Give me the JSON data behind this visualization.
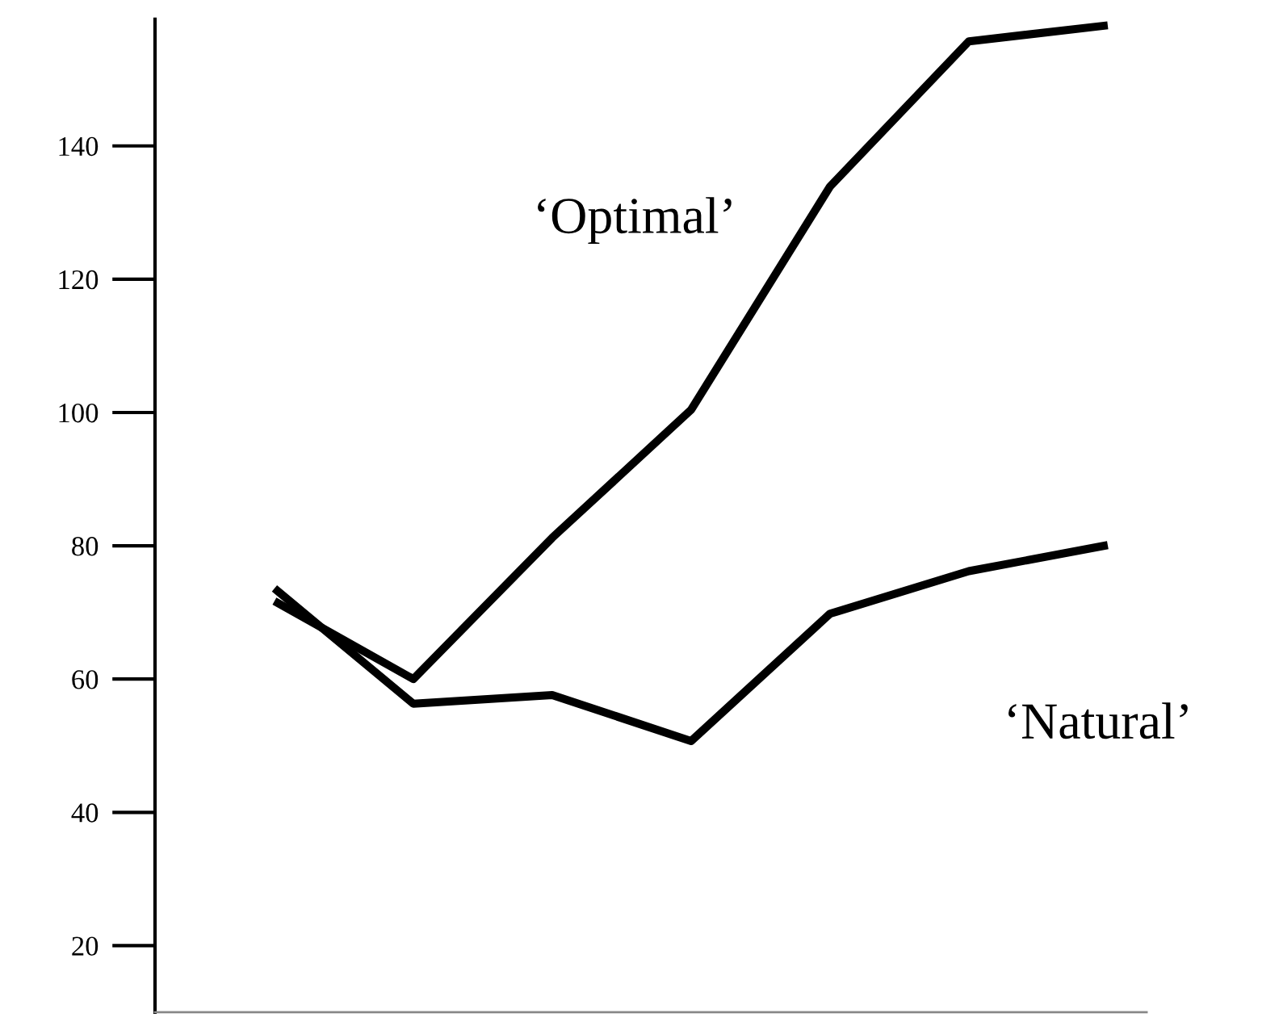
{
  "chart_data": {
    "type": "line",
    "ylim": [
      10,
      159
    ],
    "yticks": [
      20,
      40,
      60,
      80,
      100,
      120,
      140
    ],
    "categories": [
      null,
      null,
      null,
      null,
      null,
      null,
      null
    ],
    "tick_labels": "y",
    "marker": "none",
    "line_style": "solid",
    "series": [
      {
        "name": "‘Optimal’",
        "color": "#000000",
        "values": [
          71.7,
          60.0,
          81.2,
          100.4,
          133.9,
          155.7,
          158.1
        ]
      },
      {
        "name": "‘Natural’",
        "color": "#000000",
        "values": [
          73.6,
          56.3,
          57.6,
          50.7,
          69.8,
          76.2,
          80.1
        ]
      }
    ]
  }
}
